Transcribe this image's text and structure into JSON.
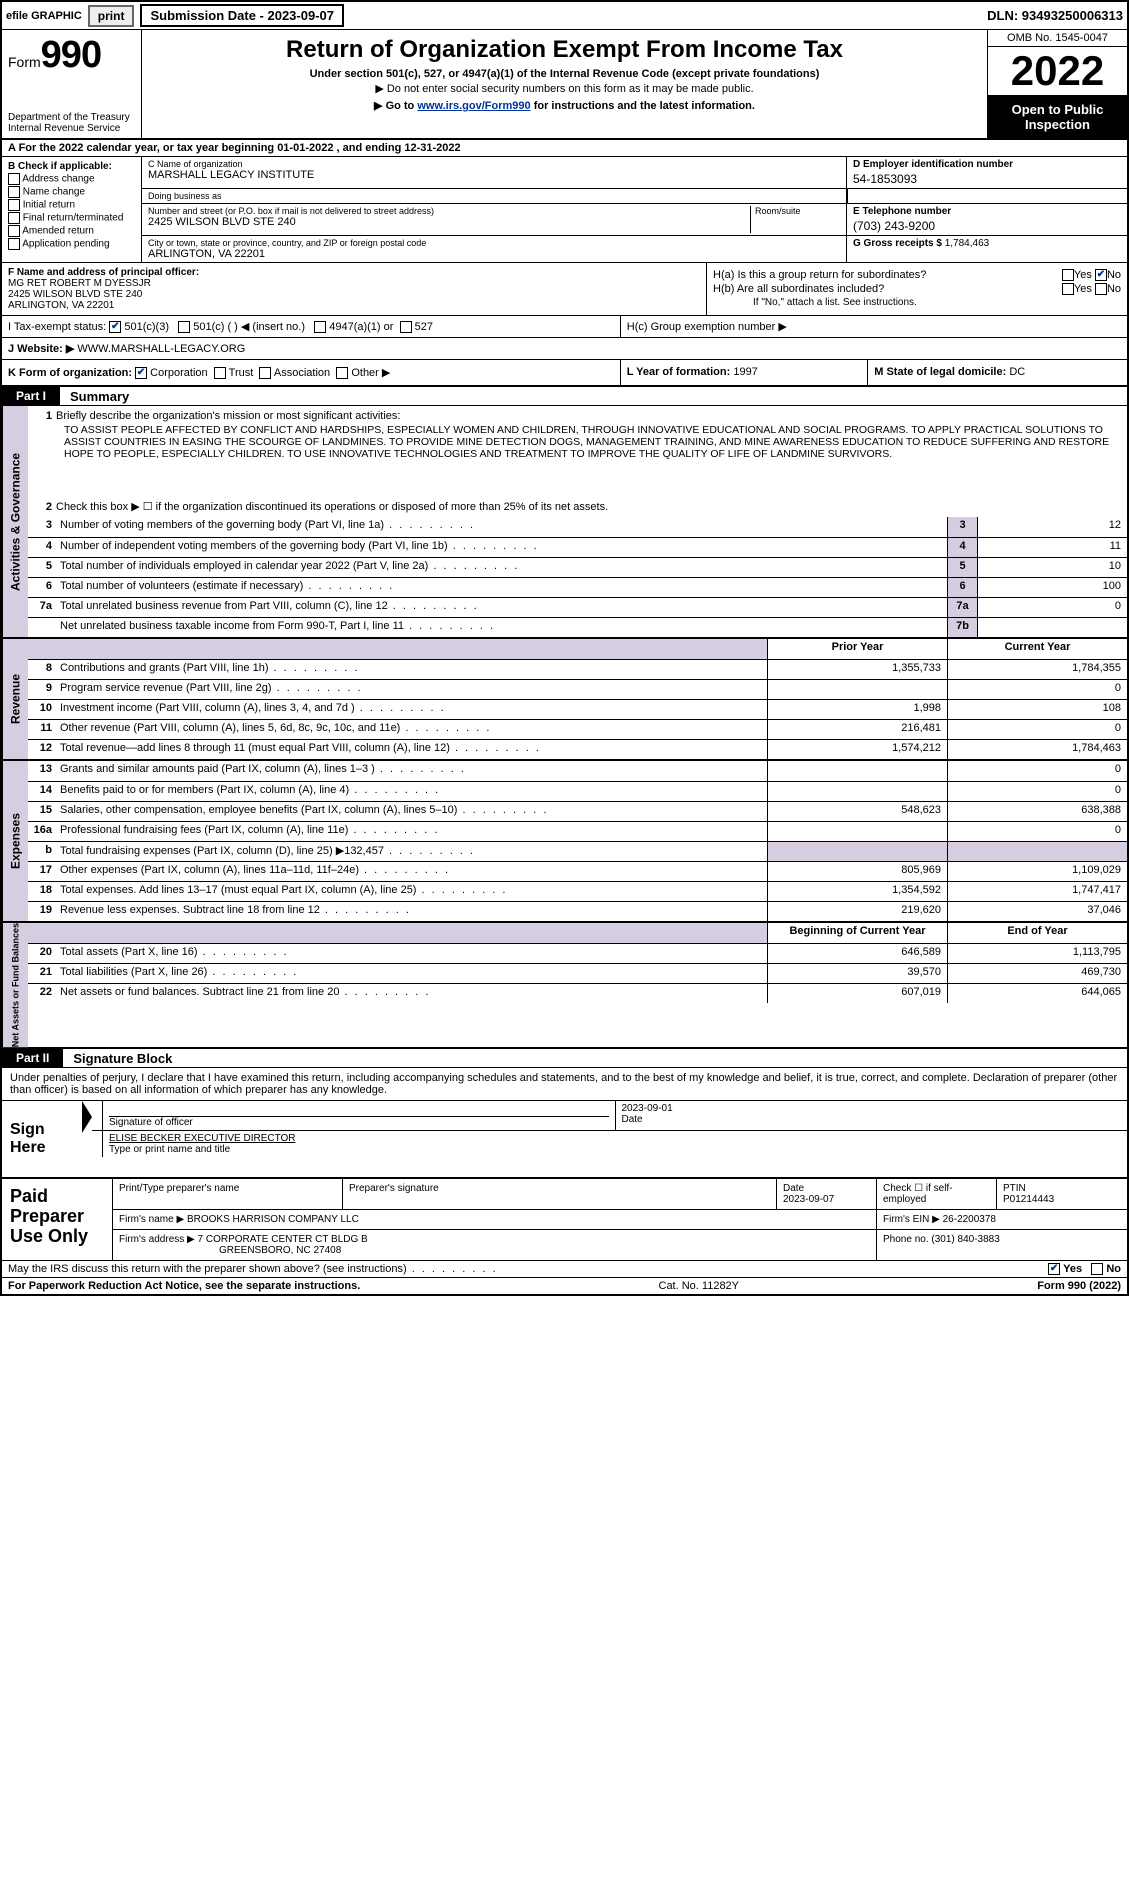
{
  "topbar": {
    "efile_label": "efile GRAPHIC",
    "print_label": "print",
    "submission_label": "Submission Date - 2023-09-07",
    "dln": "DLN: 93493250006313"
  },
  "header": {
    "form_prefix": "Form",
    "form_number": "990",
    "dept": "Department of the Treasury",
    "irs": "Internal Revenue Service",
    "title": "Return of Organization Exempt From Income Tax",
    "sub1": "Under section 501(c), 527, or 4947(a)(1) of the Internal Revenue Code (except private foundations)",
    "sub2": "▶ Do not enter social security numbers on this form as it may be made public.",
    "sub3_prefix": "▶ Go to ",
    "sub3_link": "www.irs.gov/Form990",
    "sub3_suffix": " for instructions and the latest information.",
    "omb": "OMB No. 1545-0047",
    "year": "2022",
    "inspection": "Open to Public Inspection"
  },
  "row_a": "A For the 2022 calendar year, or tax year beginning 01-01-2022   , and ending 12-31-2022",
  "section_b": {
    "header": "B Check if applicable:",
    "items": [
      "Address change",
      "Name change",
      "Initial return",
      "Final return/terminated",
      "Amended return",
      "Application pending"
    ]
  },
  "section_c": {
    "name_lbl": "C Name of organization",
    "name_val": "MARSHALL LEGACY INSTITUTE",
    "dba_lbl": "Doing business as",
    "dba_val": "",
    "street_lbl": "Number and street (or P.O. box if mail is not delivered to street address)",
    "room_lbl": "Room/suite",
    "street_val": "2425 WILSON BLVD STE 240",
    "city_lbl": "City or town, state or province, country, and ZIP or foreign postal code",
    "city_val": "ARLINGTON, VA  22201"
  },
  "section_d": {
    "ein_lbl": "D Employer identification number",
    "ein_val": "54-1853093",
    "phone_lbl": "E Telephone number",
    "phone_val": "(703) 243-9200",
    "gross_lbl": "G Gross receipts $",
    "gross_val": "1,784,463"
  },
  "section_f": {
    "lbl": "F Name and address of principal officer:",
    "line1": "MG RET ROBERT M DYESSJR",
    "line2": "2425 WILSON BLVD STE 240",
    "line3": "ARLINGTON, VA  22201"
  },
  "section_h": {
    "ha": "H(a)  Is this a group return for subordinates?",
    "hb": "H(b)  Are all subordinates included?",
    "hb_note": "If \"No,\" attach a list. See instructions.",
    "hc": "H(c)  Group exemption number ▶",
    "yes": "Yes",
    "no": "No"
  },
  "row_i": {
    "lbl": "I   Tax-exempt status:",
    "opt1": "501(c)(3)",
    "opt2": "501(c) (  ) ◀ (insert no.)",
    "opt3": "4947(a)(1) or",
    "opt4": "527"
  },
  "row_j": {
    "lbl": "J   Website: ▶",
    "val": "WWW.MARSHALL-LEGACY.ORG"
  },
  "row_k": {
    "lbl": "K Form of organization:",
    "opts": [
      "Corporation",
      "Trust",
      "Association",
      "Other ▶"
    ]
  },
  "row_l": {
    "lbl": "L Year of formation:",
    "val": "1997"
  },
  "row_m": {
    "lbl": "M State of legal domicile:",
    "val": "DC"
  },
  "part1": {
    "tag": "Part I",
    "title": "Summary"
  },
  "summary": {
    "groups": [
      {
        "side": "Activities & Governance",
        "mission_lbl": "Briefly describe the organization's mission or most significant activities:",
        "mission": "TO ASSIST PEOPLE AFFECTED BY CONFLICT AND HARDSHIPS, ESPECIALLY WOMEN AND CHILDREN, THROUGH INNOVATIVE EDUCATIONAL AND SOCIAL PROGRAMS. TO APPLY PRACTICAL SOLUTIONS TO ASSIST COUNTRIES IN EASING THE SCOURGE OF LANDMINES. TO PROVIDE MINE DETECTION DOGS, MANAGEMENT TRAINING, AND MINE AWARENESS EDUCATION TO REDUCE SUFFERING AND RESTORE HOPE TO PEOPLE, ESPECIALLY CHILDREN. TO USE INNOVATIVE TECHNOLOGIES AND TREATMENT TO IMPROVE THE QUALITY OF LIFE OF LANDMINE SURVIVORS.",
        "line2": "Check this box ▶ ☐ if the organization discontinued its operations or disposed of more than 25% of its net assets.",
        "rows_boxed": [
          {
            "n": "3",
            "d": "Number of voting members of the governing body (Part VI, line 1a)",
            "box": "3",
            "v": "12"
          },
          {
            "n": "4",
            "d": "Number of independent voting members of the governing body (Part VI, line 1b)",
            "box": "4",
            "v": "11"
          },
          {
            "n": "5",
            "d": "Total number of individuals employed in calendar year 2022 (Part V, line 2a)",
            "box": "5",
            "v": "10"
          },
          {
            "n": "6",
            "d": "Total number of volunteers (estimate if necessary)",
            "box": "6",
            "v": "100"
          },
          {
            "n": "7a",
            "d": "Total unrelated business revenue from Part VIII, column (C), line 12",
            "box": "7a",
            "v": "0"
          },
          {
            "n": "",
            "d": "Net unrelated business taxable income from Form 990-T, Part I, line 11",
            "box": "7b",
            "v": ""
          }
        ]
      },
      {
        "side": "Revenue",
        "header_prior": "Prior Year",
        "header_curr": "Current Year",
        "rows": [
          {
            "n": "8",
            "d": "Contributions and grants (Part VIII, line 1h)",
            "p": "1,355,733",
            "c": "1,784,355"
          },
          {
            "n": "9",
            "d": "Program service revenue (Part VIII, line 2g)",
            "p": "",
            "c": "0"
          },
          {
            "n": "10",
            "d": "Investment income (Part VIII, column (A), lines 3, 4, and 7d )",
            "p": "1,998",
            "c": "108"
          },
          {
            "n": "11",
            "d": "Other revenue (Part VIII, column (A), lines 5, 6d, 8c, 9c, 10c, and 11e)",
            "p": "216,481",
            "c": "0"
          },
          {
            "n": "12",
            "d": "Total revenue—add lines 8 through 11 (must equal Part VIII, column (A), line 12)",
            "p": "1,574,212",
            "c": "1,784,463"
          }
        ]
      },
      {
        "side": "Expenses",
        "rows": [
          {
            "n": "13",
            "d": "Grants and similar amounts paid (Part IX, column (A), lines 1–3 )",
            "p": "",
            "c": "0"
          },
          {
            "n": "14",
            "d": "Benefits paid to or for members (Part IX, column (A), line 4)",
            "p": "",
            "c": "0"
          },
          {
            "n": "15",
            "d": "Salaries, other compensation, employee benefits (Part IX, column (A), lines 5–10)",
            "p": "548,623",
            "c": "638,388"
          },
          {
            "n": "16a",
            "d": "Professional fundraising fees (Part IX, column (A), line 11e)",
            "p": "",
            "c": "0"
          },
          {
            "n": "b",
            "d": "Total fundraising expenses (Part IX, column (D), line 25) ▶132,457",
            "p": "shade",
            "c": "shade"
          },
          {
            "n": "17",
            "d": "Other expenses (Part IX, column (A), lines 11a–11d, 11f–24e)",
            "p": "805,969",
            "c": "1,109,029"
          },
          {
            "n": "18",
            "d": "Total expenses. Add lines 13–17 (must equal Part IX, column (A), line 25)",
            "p": "1,354,592",
            "c": "1,747,417"
          },
          {
            "n": "19",
            "d": "Revenue less expenses. Subtract line 18 from line 12",
            "p": "219,620",
            "c": "37,046"
          }
        ]
      },
      {
        "side": "Net Assets or Fund Balances",
        "header_prior": "Beginning of Current Year",
        "header_curr": "End of Year",
        "rows": [
          {
            "n": "20",
            "d": "Total assets (Part X, line 16)",
            "p": "646,589",
            "c": "1,113,795"
          },
          {
            "n": "21",
            "d": "Total liabilities (Part X, line 26)",
            "p": "39,570",
            "c": "469,730"
          },
          {
            "n": "22",
            "d": "Net assets or fund balances. Subtract line 21 from line 20",
            "p": "607,019",
            "c": "644,065"
          }
        ]
      }
    ]
  },
  "part2": {
    "tag": "Part II",
    "title": "Signature Block"
  },
  "sig": {
    "intro": "Under penalties of perjury, I declare that I have examined this return, including accompanying schedules and statements, and to the best of my knowledge and belief, it is true, correct, and complete. Declaration of preparer (other than officer) is based on all information of which preparer has any knowledge.",
    "sign_here": "Sign Here",
    "sig_officer_lbl": "Signature of officer",
    "date_lbl": "Date",
    "date_val": "2023-09-01",
    "name_val": "ELISE BECKER EXECUTIVE DIRECTOR",
    "name_lbl": "Type or print name and title"
  },
  "paid": {
    "title": "Paid Preparer Use Only",
    "r1": {
      "c1": "Print/Type preparer's name",
      "c2": "Preparer's signature",
      "c3_lbl": "Date",
      "c3_val": "2023-09-07",
      "c4_lbl": "Check ☐ if self-employed",
      "c5_lbl": "PTIN",
      "c5_val": "P01214443"
    },
    "r2": {
      "lbl": "Firm's name    ▶",
      "val": "BROOKS HARRISON COMPANY LLC",
      "ein_lbl": "Firm's EIN ▶",
      "ein_val": "26-2200378"
    },
    "r3": {
      "lbl": "Firm's address ▶",
      "val1": "7 CORPORATE CENTER CT BLDG B",
      "val2": "GREENSBORO, NC  27408",
      "ph_lbl": "Phone no.",
      "ph_val": "(301) 840-3883"
    }
  },
  "footer": {
    "discuss": "May the IRS discuss this return with the preparer shown above? (see instructions)",
    "yes": "Yes",
    "no": "No",
    "pra": "For Paperwork Reduction Act Notice, see the separate instructions.",
    "cat": "Cat. No. 11282Y",
    "form": "Form 990 (2022)"
  }
}
